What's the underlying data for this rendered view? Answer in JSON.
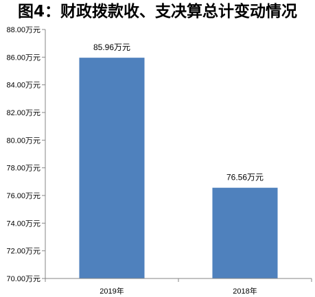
{
  "colors": {
    "bar": "#4f81bd",
    "axis": "#868686",
    "text": "#000000"
  },
  "chart_data": {
    "type": "bar",
    "title": "图4：财政拨款收、支决算总计变动情况",
    "categories": [
      "2019年",
      "2018年"
    ],
    "values": [
      85.96,
      76.56
    ],
    "data_labels": [
      "85.96万元",
      "76.56万元"
    ],
    "y_ticks": [
      70,
      72,
      74,
      76,
      78,
      80,
      82,
      84,
      86,
      88
    ],
    "y_tick_labels": [
      "70.00万元",
      "72.00万元",
      "74.00万元",
      "76.00万元",
      "78.00万元",
      "80.00万元",
      "82.00万元",
      "84.00万元",
      "86.00万元",
      "88.00万元"
    ],
    "ylim": [
      70,
      88
    ],
    "grid": false,
    "legend": "none"
  }
}
